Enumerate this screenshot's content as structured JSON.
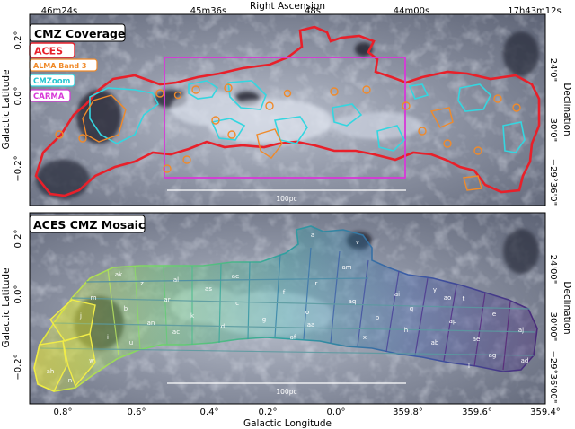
{
  "top_axis": {
    "label": "Right Ascension",
    "ticks": [
      "46m24s",
      "45m36s",
      "48s",
      "44m00s",
      "17h43m12s"
    ]
  },
  "bottom_axis": {
    "label": "Galactic Longitude",
    "ticks": [
      "0.8°",
      "0.6°",
      "0.4°",
      "0.2°",
      "0.0°",
      "359.8°",
      "359.6°",
      "359.4°"
    ]
  },
  "left_axis": {
    "label": "Galactic Latitude",
    "ticks_top": [
      "0.2°",
      "0.0°",
      "−0.2°"
    ],
    "ticks_bottom": [
      "0.2°",
      "0.0°",
      "−0.2°"
    ]
  },
  "right_axis": {
    "label": "Declination",
    "ticks_top": [
      "24'0\"",
      "30'0\"",
      "−29°36'0\""
    ],
    "ticks_bottom": [
      "24'00\"",
      "30'00\"",
      "−29°36'00\""
    ]
  },
  "panel_top": {
    "title": "CMZ Coverage",
    "legend": [
      {
        "label": "ACES",
        "color": "#e8202a"
      },
      {
        "label": "ALMA Band 3",
        "color": "#f08a2a"
      },
      {
        "label": "CMZoom",
        "color": "#34d6e0"
      },
      {
        "label": "CARMA",
        "color": "#d838d8"
      }
    ],
    "scalebar": "100pc"
  },
  "panel_bottom": {
    "title": "ACES CMZ Mosaic",
    "scalebar": "100pc",
    "tile_labels": [
      "a",
      "v",
      "am",
      "ak",
      "z",
      "al",
      "ae",
      "ar",
      "as",
      "m",
      "b",
      "an",
      "k",
      "c",
      "f",
      "r",
      "aq",
      "ai",
      "y",
      "t",
      "j",
      "u",
      "ac",
      "d",
      "g",
      "o",
      "aa",
      "p",
      "q",
      "ap",
      "e",
      "aj",
      "ao",
      "ab",
      "ae",
      "af",
      "x",
      "h",
      "w",
      "i",
      "ag",
      "ad",
      "ah",
      "n",
      "l"
    ]
  }
}
